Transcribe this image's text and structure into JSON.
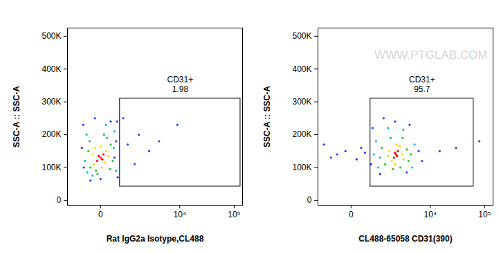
{
  "chart_data": [
    {
      "type": "scatter",
      "x_label": "Rat IgG2a Isotype,CL488",
      "y_label": "SSC-A :: SSC-A",
      "log": "x",
      "xlim": [
        -1130,
        142000
      ],
      "ylim": [
        -15000,
        525000
      ],
      "xticks": [
        0,
        {
          "value": 10000,
          "label": "10⁴"
        },
        {
          "value": 100000,
          "label": "10⁵"
        }
      ],
      "yticks": [
        0,
        {
          "value": 100000,
          "label": "100K"
        },
        {
          "value": 200000,
          "label": "200K"
        },
        {
          "value": 300000,
          "label": "300K"
        },
        {
          "value": 400000,
          "label": "400K"
        },
        {
          "value": 500000,
          "label": "500K"
        }
      ],
      "gate": {
        "label": "CD31+",
        "value": 1.98,
        "x": [
          473,
          130000
        ],
        "y": [
          42000,
          310000
        ]
      },
      "x": [
        0,
        50,
        -60,
        30,
        -30,
        100,
        -120,
        80,
        -100,
        150,
        -150,
        20,
        0,
        200,
        -200,
        250,
        -250,
        120,
        -80,
        180,
        -220,
        60,
        -50,
        300,
        -300,
        350,
        -350,
        100,
        -150,
        280,
        -280,
        380,
        -400,
        -450,
        400,
        -100,
        200,
        -380,
        350,
        0,
        -200,
        300,
        800,
        1500,
        2500,
        4000,
        9000,
        1200,
        600
      ],
      "y": [
        130000,
        140000,
        120000,
        125000,
        135000,
        150000,
        110000,
        115000,
        160000,
        135000,
        140000,
        100000,
        165000,
        170000,
        100000,
        120000,
        150000,
        190000,
        90000,
        95000,
        180000,
        200000,
        80000,
        210000,
        200000,
        90000,
        120000,
        230000,
        75000,
        160000,
        85000,
        240000,
        230000,
        160000,
        70000,
        250000,
        240000,
        100000,
        180000,
        65000,
        60000,
        130000,
        170000,
        200000,
        150000,
        180000,
        230000,
        110000,
        250000
      ],
      "colors": [
        "#ff0000",
        "#ff0000",
        "#ff0000",
        "#ff0000",
        "#ff0000",
        "#ffd700",
        "#ffd700",
        "#ffd700",
        "#ffd700",
        "#ffd700",
        "#ffd700",
        "#ffd700",
        "#ffd700",
        "#22c32e",
        "#22c32e",
        "#22c32e",
        "#22c32e",
        "#22c32e",
        "#22c32e",
        "#22c32e",
        "#22c32e",
        "#22c32e",
        "#22c32e",
        "#00bfd8",
        "#00bfd8",
        "#00bfd8",
        "#00bfd8",
        "#00bfd8",
        "#00bfd8",
        "#00bfd8",
        "#00bfd8",
        "#1f3fff",
        "#1f3fff",
        "#1f3fff",
        "#1f3fff",
        "#1f3fff",
        "#1f3fff",
        "#1f3fff",
        "#1f3fff",
        "#1f3fff",
        "#1f3fff",
        "#1f3fff",
        "#1f3fff",
        "#1f3fff",
        "#1f3fff",
        "#1f3fff",
        "#1f3fff",
        "#1f3fff",
        "#1f3fff"
      ]
    },
    {
      "type": "scatter",
      "x_label": "CL488-65058 CD31(390)",
      "y_label": "SSC-A :: SSC-A",
      "watermark": "WWW.PTGLAB.COM",
      "log": "x",
      "xlim": [
        -1130,
        142000
      ],
      "ylim": [
        -15000,
        525000
      ],
      "xticks": [
        0,
        {
          "value": 10000,
          "label": "10⁴"
        },
        {
          "value": 100000,
          "label": "10⁵"
        }
      ],
      "yticks": [
        0,
        {
          "value": 100000,
          "label": "100K"
        },
        {
          "value": 200000,
          "label": "200K"
        },
        {
          "value": 300000,
          "label": "300K"
        },
        {
          "value": 400000,
          "label": "400K"
        },
        {
          "value": 500000,
          "label": "500K"
        }
      ],
      "gate": {
        "label": "CD31+",
        "value": 95.7,
        "x": [
          473,
          62800
        ],
        "y": [
          42000,
          310000
        ]
      },
      "x": [
        2100,
        1900,
        2300,
        2000,
        2200,
        1500,
        2800,
        1700,
        2500,
        1400,
        3000,
        2000,
        2100,
        1000,
        3500,
        1200,
        3800,
        1600,
        2600,
        900,
        2900,
        4200,
        1800,
        700,
        5000,
        800,
        4500,
        1400,
        3000,
        600,
        550,
        6000,
        2000,
        4000,
        900,
        3500,
        7000,
        1100,
        500,
        -300,
        -100,
        200,
        -500,
        100,
        300,
        -800,
        15000,
        30000,
        80000
      ],
      "y": [
        140000,
        130000,
        150000,
        145000,
        135000,
        150000,
        140000,
        120000,
        165000,
        135000,
        125000,
        110000,
        170000,
        160000,
        155000,
        110000,
        120000,
        190000,
        100000,
        130000,
        190000,
        140000,
        95000,
        180000,
        170000,
        100000,
        100000,
        220000,
        215000,
        140000,
        220000,
        150000,
        240000,
        230000,
        80000,
        85000,
        120000,
        250000,
        110000,
        140000,
        150000,
        160000,
        130000,
        125000,
        145000,
        170000,
        150000,
        160000,
        180000
      ],
      "colors": [
        "#ff0000",
        "#ff0000",
        "#ff0000",
        "#ff0000",
        "#ff0000",
        "#ffd700",
        "#ffd700",
        "#ffd700",
        "#ffd700",
        "#ffd700",
        "#ffd700",
        "#ffd700",
        "#ffd700",
        "#22c32e",
        "#22c32e",
        "#22c32e",
        "#22c32e",
        "#22c32e",
        "#22c32e",
        "#22c32e",
        "#22c32e",
        "#22c32e",
        "#22c32e",
        "#00bfd8",
        "#00bfd8",
        "#00bfd8",
        "#00bfd8",
        "#00bfd8",
        "#00bfd8",
        "#00bfd8",
        "#1f3fff",
        "#1f3fff",
        "#1f3fff",
        "#1f3fff",
        "#1f3fff",
        "#1f3fff",
        "#1f3fff",
        "#1f3fff",
        "#1f3fff",
        "#1f3fff",
        "#1f3fff",
        "#1f3fff",
        "#1f3fff",
        "#1f3fff",
        "#1f3fff",
        "#1f3fff",
        "#1f3fff",
        "#1f3fff",
        "#1f3fff"
      ]
    }
  ]
}
